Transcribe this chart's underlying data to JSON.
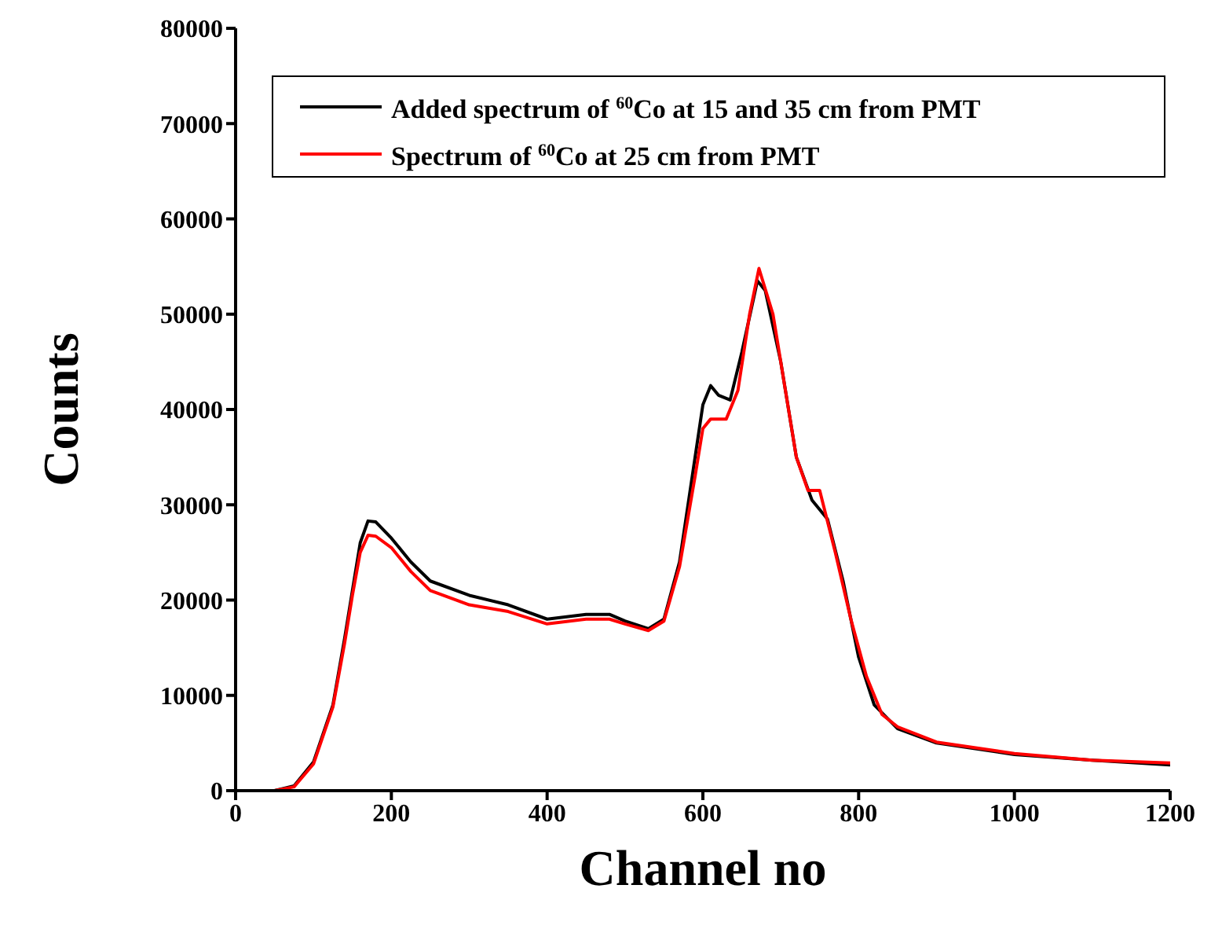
{
  "chart_data": {
    "type": "line",
    "xlabel": "Channel no",
    "ylabel": "Counts",
    "xlim": [
      0,
      1200
    ],
    "xticks": [
      0,
      200,
      400,
      600,
      800,
      1000,
      1200
    ],
    "ylim": [
      0,
      80000
    ],
    "yticks": [
      0,
      10000,
      20000,
      30000,
      40000,
      50000,
      60000,
      70000,
      80000
    ],
    "grid": false,
    "legend": "top",
    "marker": "none",
    "line_style": "solid",
    "series": [
      {
        "name": "Added spectrum of $^{60}$Co at 15 and 35 cm from PMT",
        "color": "#000000",
        "x": [
          0,
          50,
          75,
          100,
          125,
          140,
          150,
          160,
          170,
          180,
          200,
          225,
          250,
          300,
          350,
          400,
          450,
          480,
          500,
          530,
          550,
          570,
          590,
          600,
          610,
          620,
          635,
          650,
          670,
          680,
          700,
          720,
          740,
          760,
          780,
          800,
          820,
          850,
          900,
          1000,
          1100,
          1200
        ],
        "values": [
          0,
          0,
          500,
          3000,
          9000,
          16000,
          21000,
          26000,
          28300,
          28200,
          26500,
          24000,
          22000,
          20500,
          19500,
          18000,
          18500,
          18500,
          17800,
          17000,
          18000,
          24000,
          35000,
          40500,
          42500,
          41500,
          41000,
          46000,
          53500,
          52500,
          45000,
          35000,
          30500,
          28500,
          22000,
          14000,
          9000,
          6500,
          5000,
          3800,
          3200,
          2700
        ]
      },
      {
        "name": "Spectrum of $^{60}$Co at 25 cm from PMT",
        "color": "#ff0000",
        "x": [
          0,
          50,
          75,
          100,
          125,
          140,
          150,
          160,
          170,
          180,
          200,
          225,
          250,
          300,
          350,
          400,
          450,
          480,
          500,
          530,
          550,
          570,
          590,
          600,
          610,
          630,
          645,
          660,
          672,
          690,
          720,
          735,
          750,
          770,
          790,
          810,
          830,
          850,
          900,
          1000,
          1100,
          1200
        ],
        "values": [
          0,
          0,
          400,
          2800,
          8800,
          15500,
          20500,
          25000,
          26800,
          26700,
          25500,
          23000,
          21000,
          19500,
          18800,
          17500,
          18000,
          18000,
          17500,
          16800,
          17800,
          23500,
          33000,
          38000,
          39000,
          39000,
          42000,
          50000,
          54800,
          50000,
          35000,
          31500,
          31500,
          25000,
          18000,
          12000,
          8000,
          6700,
          5100,
          3900,
          3200,
          2900
        ]
      }
    ]
  }
}
